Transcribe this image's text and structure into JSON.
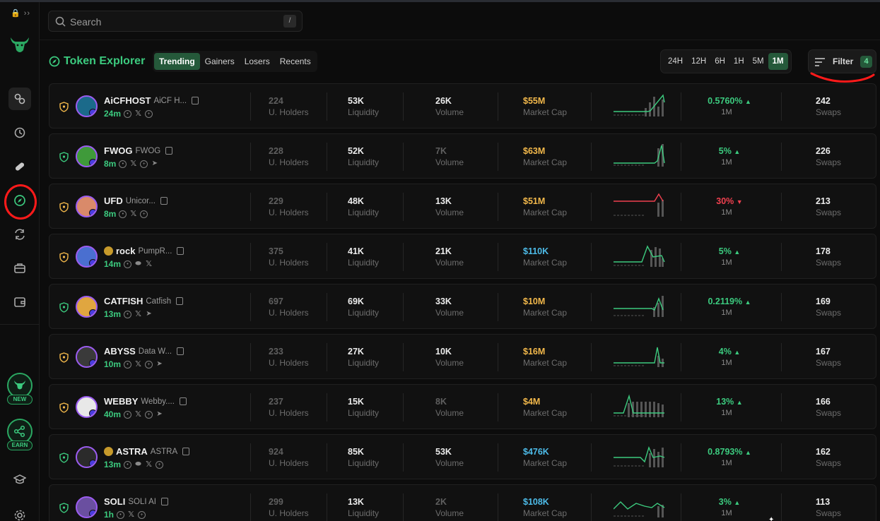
{
  "sidebar": {
    "collapse_label": "🔒 ››",
    "new_badge": "NEW",
    "earn_badge": "EARN"
  },
  "search": {
    "placeholder": "Search",
    "shortcut": "/"
  },
  "header": {
    "title": "Token Explorer",
    "tabs": [
      {
        "label": "Trending",
        "active": true
      },
      {
        "label": "Gainers",
        "active": false
      },
      {
        "label": "Losers",
        "active": false
      },
      {
        "label": "Recents",
        "active": false
      }
    ],
    "timeframes": [
      {
        "label": "24H",
        "active": false
      },
      {
        "label": "12H",
        "active": false
      },
      {
        "label": "6H",
        "active": false
      },
      {
        "label": "1H",
        "active": false
      },
      {
        "label": "5M",
        "active": false
      },
      {
        "label": "1M",
        "active": true
      }
    ],
    "filter_label": "Filter",
    "filter_count": "4"
  },
  "labels": {
    "holders": "U. Holders",
    "liquidity": "Liquidity",
    "volume": "Volume",
    "market_cap": "Market Cap",
    "swaps": "Swaps"
  },
  "colors": {
    "accent": "#3ccb7f",
    "active_bg": "#25593a",
    "up": "#3ccb7f",
    "down": "#f0404f",
    "gold": "#f2b84b",
    "blue": "#4dbbe8",
    "annotation": "#ff1a1a"
  },
  "tokens": [
    {
      "symbol": "AiCFHOST",
      "name": "AiCF H...",
      "age": "24m",
      "holders": "224",
      "liquidity": "53K",
      "volume": "26K",
      "volume_dim": false,
      "mcap": "$55M",
      "mcap_color": "gold",
      "change": "0.5760%",
      "direction": "up",
      "period": "1M",
      "swaps": "242",
      "avatar_color": "#1b6a8a",
      "socials": [
        "web",
        "x",
        "globe"
      ]
    },
    {
      "symbol": "FWOG",
      "name": "FWOG",
      "age": "8m",
      "holders": "228",
      "liquidity": "52K",
      "volume": "7K",
      "volume_dim": true,
      "mcap": "$63M",
      "mcap_color": "gold",
      "change": "5%",
      "direction": "up",
      "period": "1M",
      "swaps": "226",
      "avatar_color": "#3f9a3a",
      "socials": [
        "web",
        "x",
        "globe",
        "tg"
      ]
    },
    {
      "symbol": "UFD",
      "name": "Unicor...",
      "age": "8m",
      "holders": "229",
      "liquidity": "48K",
      "volume": "13K",
      "volume_dim": false,
      "mcap": "$51M",
      "mcap_color": "gold",
      "change": "30%",
      "direction": "down",
      "period": "1M",
      "swaps": "213",
      "avatar_color": "#d98a6a",
      "socials": [
        "web",
        "x",
        "globe"
      ]
    },
    {
      "symbol": "rock",
      "name": "PumpR...",
      "age": "14m",
      "holders": "375",
      "liquidity": "41K",
      "volume": "21K",
      "volume_dim": false,
      "mcap": "$110K",
      "mcap_color": "blue",
      "change": "5%",
      "direction": "up",
      "period": "1M",
      "swaps": "178",
      "avatar_color": "#4a6fd0",
      "socials": [
        "web",
        "pill",
        "x"
      ],
      "pump": true
    },
    {
      "symbol": "CATFISH",
      "name": "Catfish",
      "age": "13m",
      "holders": "697",
      "liquidity": "69K",
      "volume": "33K",
      "volume_dim": false,
      "mcap": "$10M",
      "mcap_color": "gold",
      "change": "0.2119%",
      "direction": "up",
      "period": "1M",
      "swaps": "169",
      "avatar_color": "#e0a640",
      "socials": [
        "web",
        "x",
        "tg"
      ]
    },
    {
      "symbol": "ABYSS",
      "name": "Data W...",
      "age": "10m",
      "holders": "233",
      "liquidity": "27K",
      "volume": "10K",
      "volume_dim": false,
      "mcap": "$16M",
      "mcap_color": "gold",
      "change": "4%",
      "direction": "up",
      "period": "1M",
      "swaps": "167",
      "avatar_color": "#3a3a3a",
      "socials": [
        "web",
        "x",
        "globe",
        "tg"
      ]
    },
    {
      "symbol": "WEBBY",
      "name": "Webby....",
      "age": "40m",
      "holders": "237",
      "liquidity": "15K",
      "volume": "8K",
      "volume_dim": true,
      "mcap": "$4M",
      "mcap_color": "gold",
      "change": "13%",
      "direction": "up",
      "period": "1M",
      "swaps": "166",
      "avatar_color": "#e8e8e8",
      "socials": [
        "web",
        "x",
        "globe",
        "tg"
      ]
    },
    {
      "symbol": "ASTRA",
      "name": "ASTRA",
      "age": "13m",
      "holders": "924",
      "liquidity": "85K",
      "volume": "53K",
      "volume_dim": false,
      "mcap": "$476K",
      "mcap_color": "blue",
      "change": "0.8793%",
      "direction": "up",
      "period": "1M",
      "swaps": "162",
      "avatar_color": "#2b2b2b",
      "socials": [
        "web",
        "pill",
        "x",
        "globe"
      ],
      "pump": true
    },
    {
      "symbol": "SOLI",
      "name": "SOLI AI",
      "age": "1h",
      "holders": "299",
      "liquidity": "13K",
      "volume": "2K",
      "volume_dim": true,
      "mcap": "$108K",
      "mcap_color": "blue",
      "change": "3%",
      "direction": "up",
      "period": "1M",
      "swaps": "113",
      "avatar_color": "#6a4fa0",
      "socials": [
        "web",
        "x",
        "globe"
      ]
    }
  ]
}
